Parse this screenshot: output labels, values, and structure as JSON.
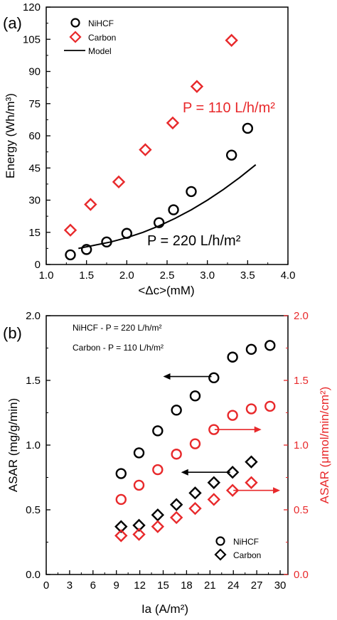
{
  "chart_data": [
    {
      "type": "scatter",
      "panel_label": "(a)",
      "xlabel": "<Δc>(mM)",
      "ylabel": "Energy (Wh/m³)",
      "xlim": [
        1.0,
        4.0
      ],
      "ylim": [
        0,
        120
      ],
      "xticks": [
        "1.0",
        "1.5",
        "2.0",
        "2.5",
        "3.0",
        "3.5",
        "4.0"
      ],
      "yticks": [
        "0",
        "15",
        "30",
        "45",
        "60",
        "75",
        "90",
        "105",
        "120"
      ],
      "legend": {
        "placement": "top-left",
        "entries": [
          "NiHCF",
          "Carbon",
          "Model"
        ]
      },
      "annotations": [
        "P = 110 L/h/m²",
        "P = 220 L/h/m²"
      ],
      "series": [
        {
          "name": "NiHCF",
          "marker": "circle",
          "color": "#000000",
          "x": [
            1.3,
            1.5,
            1.75,
            2.0,
            2.4,
            2.58,
            2.8,
            3.3,
            3.5
          ],
          "y": [
            4.5,
            7.0,
            10.5,
            14.5,
            19.5,
            25.5,
            34.0,
            51.0,
            63.5
          ]
        },
        {
          "name": "Carbon",
          "marker": "diamond",
          "color": "#e8292b",
          "x": [
            1.3,
            1.55,
            1.9,
            2.23,
            2.57,
            2.87,
            3.3
          ],
          "y": [
            16.0,
            28.0,
            38.5,
            53.5,
            66.0,
            83.0,
            104.5
          ]
        },
        {
          "name": "Model",
          "marker": "line",
          "color": "#000000",
          "x": [
            1.4,
            1.6,
            1.8,
            2.0,
            2.2,
            2.4,
            2.6,
            2.8,
            3.0,
            3.2,
            3.4,
            3.6
          ],
          "y": [
            7.5,
            9.0,
            10.5,
            12.5,
            15.0,
            18.0,
            21.5,
            25.5,
            30.0,
            35.0,
            40.5,
            46.5
          ]
        }
      ]
    },
    {
      "type": "scatter",
      "panel_label": "(b)",
      "xlabel": "Ia (A/m²)",
      "ylabel_left": "ASAR (mg/g/min)",
      "ylabel_right": "ASAR (μmol/min/cm²)",
      "xlim": [
        0,
        31
      ],
      "ylim_left": [
        0,
        2.0
      ],
      "ylim_right": [
        0,
        2.0
      ],
      "xticks": [
        "0",
        "3",
        "6",
        "9",
        "12",
        "15",
        "18",
        "21",
        "24",
        "27",
        "30"
      ],
      "yticks_left": [
        "0.0",
        "0.5",
        "1.0",
        "1.5",
        "2.0"
      ],
      "yticks_right": [
        "0.0",
        "0.5",
        "1.0",
        "1.5",
        "2.0"
      ],
      "conditions": [
        "NiHCF - P = 220 L/h/m²",
        "Carbon - P = 110 L/h/m²"
      ],
      "legend": {
        "placement": "bottom-right",
        "entries": [
          "NiHCF",
          "Carbon"
        ]
      },
      "series": [
        {
          "name": "NiHCF",
          "axis": "left",
          "marker": "circle",
          "color": "#000000",
          "x": [
            9.6,
            11.9,
            14.3,
            16.7,
            19.1,
            21.5,
            23.9,
            26.3,
            28.7
          ],
          "y": [
            0.78,
            0.94,
            1.11,
            1.27,
            1.38,
            1.52,
            1.68,
            1.74,
            1.77
          ]
        },
        {
          "name": "NiHCF",
          "axis": "right",
          "marker": "circle",
          "color": "#e8292b",
          "x": [
            9.6,
            11.9,
            14.3,
            16.7,
            19.1,
            21.5,
            23.9,
            26.3,
            28.7
          ],
          "y": [
            0.58,
            0.69,
            0.81,
            0.93,
            1.01,
            1.12,
            1.23,
            1.28,
            1.3
          ]
        },
        {
          "name": "Carbon",
          "axis": "left",
          "marker": "diamond",
          "color": "#000000",
          "x": [
            9.6,
            11.9,
            14.3,
            16.7,
            19.1,
            21.5,
            23.9,
            26.3
          ],
          "y": [
            0.37,
            0.38,
            0.46,
            0.54,
            0.63,
            0.71,
            0.79,
            0.87
          ]
        },
        {
          "name": "Carbon",
          "axis": "right",
          "marker": "diamond",
          "color": "#e8292b",
          "x": [
            9.6,
            11.9,
            14.3,
            16.7,
            19.1,
            21.5,
            23.9,
            26.3
          ],
          "y": [
            0.3,
            0.31,
            0.37,
            0.44,
            0.51,
            0.58,
            0.65,
            0.71
          ]
        }
      ],
      "arrows": [
        {
          "axis": "left",
          "color": "#000000",
          "from_x": 21.2,
          "to_x": 15.0,
          "y": 1.53
        },
        {
          "axis": "right",
          "color": "#e8292b",
          "from_x": 21.6,
          "to_x": 27.6,
          "y": 1.12
        },
        {
          "axis": "left",
          "color": "#000000",
          "from_x": 23.6,
          "to_x": 17.3,
          "y": 0.79
        },
        {
          "axis": "right",
          "color": "#e8292b",
          "from_x": 24.0,
          "to_x": 30.0,
          "y": 0.65
        }
      ]
    }
  ]
}
